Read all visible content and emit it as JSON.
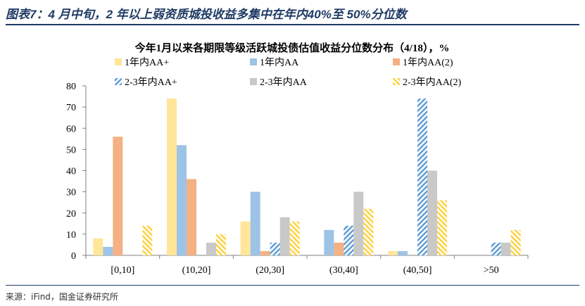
{
  "figure": {
    "title": "图表7：4 月中旬，2 年以上弱资质城投收益多集中在年内40%至 50%分位数",
    "source": "来源：iFind，国金证券研究所"
  },
  "colors": {
    "title_blue": "#1f3b64",
    "s1": "#ffe699",
    "s2": "#9dc3e6",
    "s3": "#f4b183",
    "s4": "#5b9bd5",
    "s5": "#c9c9c9",
    "s6": "#ffd03a"
  },
  "chart_data": {
    "type": "bar",
    "title": "今年1月以来各期限等级活跃城投债估值收益分位数分布（4/18），%",
    "xlabel": "",
    "ylabel": "",
    "ylim": [
      0,
      80
    ],
    "yticks": [
      0,
      10,
      20,
      30,
      40,
      50,
      60,
      70,
      80
    ],
    "grid": false,
    "legend_position": "top",
    "categories": [
      "[0,10]",
      "(10,20]",
      "(20,30]",
      "(30,40]",
      "(40,50]",
      ">50"
    ],
    "series": [
      {
        "name": "1年内AA+",
        "values": [
          8,
          74,
          16,
          0,
          2,
          0
        ],
        "pattern": "solid",
        "color": "#ffe699"
      },
      {
        "name": "1年内AA",
        "values": [
          4,
          52,
          30,
          12,
          2,
          0
        ],
        "pattern": "solid",
        "color": "#9dc3e6"
      },
      {
        "name": "1年内AA(2)",
        "values": [
          56,
          36,
          2,
          6,
          0,
          0
        ],
        "pattern": "solid",
        "color": "#f4b183"
      },
      {
        "name": "2-3年内AA+",
        "values": [
          0,
          0,
          6,
          14,
          74,
          6
        ],
        "pattern": "hatch-blue",
        "color": "#5b9bd5"
      },
      {
        "name": "2-3年内AA",
        "values": [
          0,
          6,
          18,
          30,
          40,
          6
        ],
        "pattern": "solid",
        "color": "#c9c9c9"
      },
      {
        "name": "2-3年内AA(2)",
        "values": [
          14,
          10,
          16,
          22,
          26,
          12
        ],
        "pattern": "hatch-yellow",
        "color": "#ffd03a"
      }
    ]
  }
}
